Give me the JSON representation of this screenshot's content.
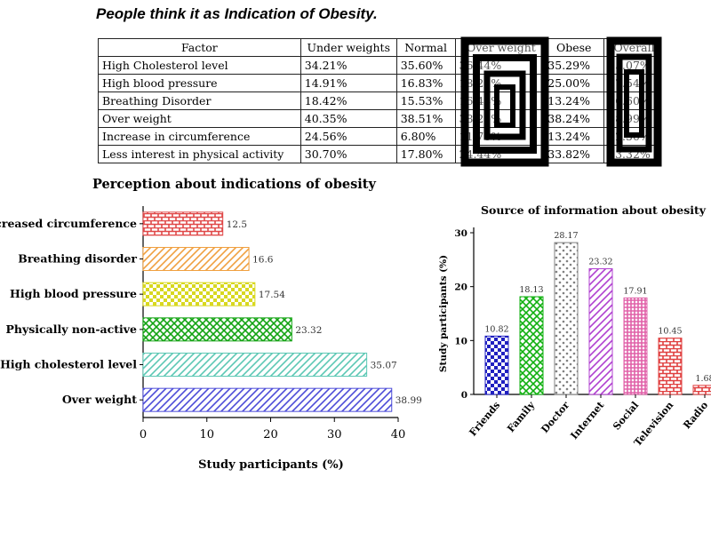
{
  "title": "People think it as Indication of Obesity.",
  "table": {
    "headers": [
      "Factor",
      "Under weights",
      "Normal",
      "Over weight",
      "Obese",
      "Overall"
    ],
    "rows": [
      [
        "High Cholesterol level",
        "34.21%",
        "35.60%",
        "36.44%",
        "35.29%",
        "35.07%"
      ],
      [
        "High blood pressure",
        "14.91%",
        "16.83%",
        "18.20%",
        "25.00%",
        "17.54%"
      ],
      [
        "Breathing Disorder",
        "18.42%",
        "15.53%",
        "16.44%",
        "13.24%",
        "16.60%"
      ],
      [
        "Over weight",
        "40.35%",
        "38.51%",
        "38.22%",
        "38.24%",
        "38.99%"
      ],
      [
        "Increase in circumference",
        "24.56%",
        "6.80%",
        "11.78%",
        "13.24%",
        "12.50%"
      ],
      [
        "Less interest in physical activity",
        "30.70%",
        "17.80%",
        "24.44%",
        "33.82%",
        "23.32%"
      ]
    ]
  },
  "chart_data": [
    {
      "type": "bar",
      "orientation": "horizontal",
      "title": "Perception about indications of obesity",
      "xlabel": "Study participants (%)",
      "ylabel": "",
      "categories": [
        "Over weight",
        "High cholesterol level",
        "Physically non-active",
        "High blood pressure",
        "Breathing disorder",
        "Increased circumference"
      ],
      "values": [
        38.99,
        35.07,
        23.32,
        17.54,
        16.6,
        12.5
      ],
      "value_labels": [
        "38.99",
        "35.07",
        "23.32",
        "17.54",
        "16.6",
        "12.5"
      ],
      "colors": [
        "#4c4cd8",
        "#5cc8b4",
        "#12a312",
        "#d8d820",
        "#f0a040",
        "#e04848"
      ],
      "xlim": [
        0,
        40
      ],
      "xticks": [
        "0",
        "10",
        "20",
        "30",
        "40"
      ],
      "grid": false
    },
    {
      "type": "bar",
      "orientation": "vertical",
      "title": "Source of information about obesity",
      "xlabel": "",
      "ylabel": "Study participants (%)",
      "categories": [
        "Friends",
        "Family",
        "Doctor",
        "Internet",
        "Social",
        "Television",
        "Radio"
      ],
      "values": [
        10.82,
        18.13,
        28.17,
        23.32,
        17.91,
        10.45,
        1.68
      ],
      "value_labels": [
        "10.82",
        "18.13",
        "28.17",
        "23.32",
        "17.91",
        "10.45",
        "1.68"
      ],
      "colors": [
        "#2020c0",
        "#10b010",
        "#808080",
        "#b040d0",
        "#e060a8",
        "#e04040",
        "#e04040"
      ],
      "ylim": [
        0,
        30
      ],
      "yticks": [
        "0",
        "10",
        "20",
        "30"
      ],
      "grid": false
    }
  ]
}
